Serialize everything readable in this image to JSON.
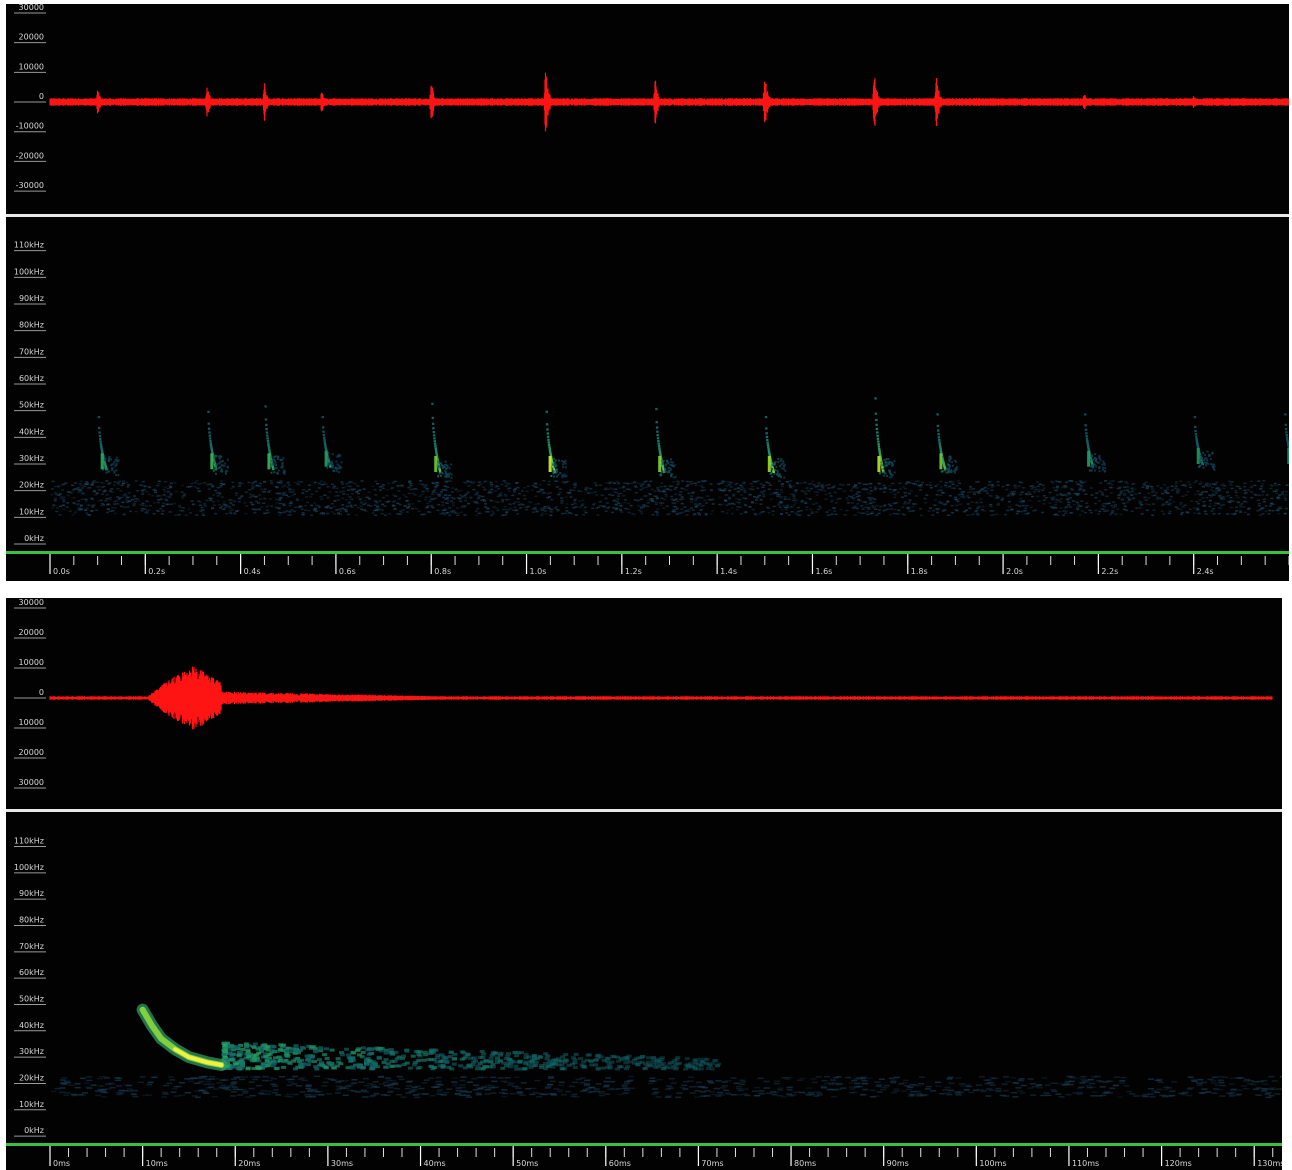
{
  "chart_data": [
    {
      "type": "waveform+spectrogram",
      "view": "overview",
      "waveform": {
        "y_tick_labels": [
          "30000",
          "20000",
          "10000",
          "0",
          "-10000",
          "-20000",
          "-30000"
        ],
        "y_ticks": [
          30000,
          20000,
          10000,
          0,
          -10000,
          -20000,
          -30000
        ],
        "ylim": [
          -32000,
          32000
        ],
        "color": "#ff1414",
        "pulses": [
          {
            "t": 0.1,
            "amp": 4500
          },
          {
            "t": 0.33,
            "amp": 6500
          },
          {
            "t": 0.45,
            "amp": 7000
          },
          {
            "t": 0.57,
            "amp": 4000
          },
          {
            "t": 0.8,
            "amp": 7500
          },
          {
            "t": 1.04,
            "amp": 12500
          },
          {
            "t": 1.27,
            "amp": 8000
          },
          {
            "t": 1.5,
            "amp": 10000
          },
          {
            "t": 1.73,
            "amp": 10500
          },
          {
            "t": 1.86,
            "amp": 9500
          },
          {
            "t": 2.17,
            "amp": 3500
          },
          {
            "t": 2.4,
            "amp": 2500
          },
          {
            "t": 2.59,
            "amp": 2500
          }
        ]
      },
      "spectrogram": {
        "y_tick_labels": [
          "110kHz",
          "100kHz",
          "90kHz",
          "80kHz",
          "70kHz",
          "60kHz",
          "50kHz",
          "40kHz",
          "30kHz",
          "20kHz",
          "10kHz",
          "0kHz"
        ],
        "y_ticks": [
          110,
          100,
          90,
          80,
          70,
          60,
          50,
          40,
          30,
          20,
          10,
          0
        ],
        "ylim": [
          -3,
          114
        ],
        "noise_band_khz": [
          11,
          24
        ],
        "calls": [
          {
            "t": 0.1,
            "f_high": 48,
            "f_low": 28,
            "intensity": 0.55
          },
          {
            "t": 0.33,
            "f_high": 50,
            "f_low": 28,
            "intensity": 0.6
          },
          {
            "t": 0.45,
            "f_high": 52,
            "f_low": 28,
            "intensity": 0.6
          },
          {
            "t": 0.57,
            "f_high": 48,
            "f_low": 29,
            "intensity": 0.5
          },
          {
            "t": 0.8,
            "f_high": 53,
            "f_low": 27,
            "intensity": 0.7
          },
          {
            "t": 1.04,
            "f_high": 50,
            "f_low": 27,
            "intensity": 0.9
          },
          {
            "t": 1.27,
            "f_high": 51,
            "f_low": 27,
            "intensity": 0.75
          },
          {
            "t": 1.5,
            "f_high": 48,
            "f_low": 27,
            "intensity": 0.8
          },
          {
            "t": 1.73,
            "f_high": 55,
            "f_low": 27,
            "intensity": 0.85
          },
          {
            "t": 1.86,
            "f_high": 49,
            "f_low": 28,
            "intensity": 0.7
          },
          {
            "t": 2.17,
            "f_high": 49,
            "f_low": 29,
            "intensity": 0.5
          },
          {
            "t": 2.4,
            "f_high": 48,
            "f_low": 30,
            "intensity": 0.45
          },
          {
            "t": 2.59,
            "f_high": 49,
            "f_low": 30,
            "intensity": 0.4
          }
        ]
      },
      "x_axis": {
        "tick_labels": [
          "0.0s",
          "0.2s",
          "0.4s",
          "0.6s",
          "0.8s",
          "1.0s",
          "1.2s",
          "1.4s",
          "1.6s",
          "1.8s",
          "2.0s",
          "2.2s",
          "2.4s"
        ],
        "ticks": [
          0.0,
          0.2,
          0.4,
          0.6,
          0.8,
          1.0,
          1.2,
          1.4,
          1.6,
          1.8,
          2.0,
          2.2,
          2.4
        ],
        "minor_step": 0.05,
        "xlim": [
          0.0,
          2.6
        ]
      }
    },
    {
      "type": "waveform+spectrogram",
      "view": "single-call",
      "waveform": {
        "y_tick_labels": [
          "30000",
          "20000",
          "10000",
          "0",
          "10000",
          "20000",
          "30000"
        ],
        "y_ticks": [
          30000,
          20000,
          10000,
          0,
          -10000,
          -20000,
          -30000
        ],
        "ylim": [
          -32000,
          32000
        ],
        "color": "#ff1414",
        "burst": {
          "start_ms": 10.5,
          "peak_ms": 15.5,
          "end_ms": 18.5,
          "amp": 11000,
          "tail_end_ms": 45,
          "tail_amp": 1800,
          "noise_amp": 600
        }
      },
      "spectrogram": {
        "y_tick_labels": [
          "110kHz",
          "100kHz",
          "90kHz",
          "80kHz",
          "70kHz",
          "60kHz",
          "50kHz",
          "40kHz",
          "30kHz",
          "20kHz",
          "10kHz",
          "0kHz"
        ],
        "y_ticks": [
          110,
          100,
          90,
          80,
          70,
          60,
          50,
          40,
          30,
          20,
          10,
          0
        ],
        "ylim": [
          -3,
          114
        ],
        "noise_band_khz": [
          15,
          23
        ],
        "call": {
          "start_ms": 10.0,
          "curve": [
            [
              10.0,
              48
            ],
            [
              11.0,
              42
            ],
            [
              12.0,
              37
            ],
            [
              13.5,
              33
            ],
            [
              15.0,
              30
            ],
            [
              17.0,
              28
            ],
            [
              18.5,
              27
            ]
          ],
          "tail_end_ms": 72,
          "tail_khz": [
            26,
            36
          ]
        }
      },
      "x_axis": {
        "tick_labels": [
          "0ms",
          "10ms",
          "20ms",
          "30ms",
          "40ms",
          "50ms",
          "60ms",
          "70ms",
          "80ms",
          "90ms",
          "100ms",
          "110ms",
          "120ms",
          "130ms"
        ],
        "ticks": [
          0,
          10,
          20,
          30,
          40,
          50,
          60,
          70,
          80,
          90,
          100,
          110,
          120,
          130
        ],
        "minor_step": 2,
        "xlim": [
          0,
          133
        ]
      }
    }
  ]
}
